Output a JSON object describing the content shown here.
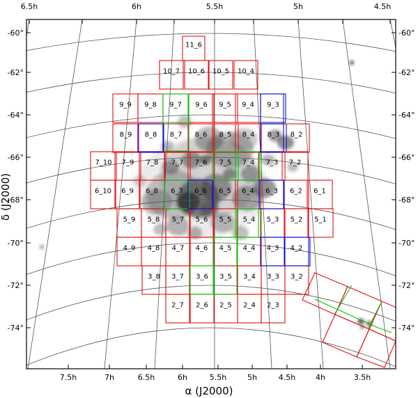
{
  "figure": {
    "x_axis_title": "α (J2000)",
    "y_axis_title": "δ (J2000)",
    "ra_labels_top": [
      "6.5h",
      "6h",
      "5.5h",
      "5h",
      "4.5h"
    ],
    "ra_labels_bottom": [
      "7.5h",
      "7h",
      "6.5h",
      "6h",
      "5.5h",
      "5h",
      "4.5h",
      "4h",
      "3.5h"
    ],
    "dec_labels": [
      "-60°",
      "-62°",
      "-64°",
      "-66°",
      "-68°",
      "-70°",
      "-72°",
      "-74°"
    ],
    "colors": {
      "red": "#e01010",
      "blue": "#1010d0",
      "green": "#10c010",
      "frame": "#000000",
      "grid": "#555555",
      "nebula": "#333333"
    },
    "tiles": [
      {
        "label": "11_6",
        "color": "red"
      },
      {
        "label": "10_7",
        "color": "red"
      },
      {
        "label": "10_6",
        "color": "red"
      },
      {
        "label": "10_5",
        "color": "red"
      },
      {
        "label": "10_4",
        "color": "red"
      },
      {
        "label": "9_9",
        "color": "red"
      },
      {
        "label": "9_8",
        "color": "red"
      },
      {
        "label": "9_7",
        "color": "green"
      },
      {
        "label": "9_6",
        "color": "red"
      },
      {
        "label": "9_5",
        "color": "red"
      },
      {
        "label": "9_4",
        "color": "red"
      },
      {
        "label": "9_3",
        "color": "blue"
      },
      {
        "label": "8_9",
        "color": "red"
      },
      {
        "label": "8_8",
        "color": "blue"
      },
      {
        "label": "8_7",
        "color": "red"
      },
      {
        "label": "8_6",
        "color": "red"
      },
      {
        "label": "8_5",
        "color": "red"
      },
      {
        "label": "8_4",
        "color": "red"
      },
      {
        "label": "8_3",
        "color": "blue"
      },
      {
        "label": "8_2",
        "color": "red"
      },
      {
        "label": "7_10",
        "color": "red"
      },
      {
        "label": "7_9",
        "color": "red"
      },
      {
        "label": "7_8",
        "color": "red"
      },
      {
        "label": "7_7",
        "color": "red"
      },
      {
        "label": "7_6",
        "color": "red"
      },
      {
        "label": "7_5",
        "color": "green"
      },
      {
        "label": "7_4",
        "color": "green"
      },
      {
        "label": "7_3",
        "color": "red"
      },
      {
        "label": "7_2",
        "color": "red"
      },
      {
        "label": "6_10",
        "color": "red"
      },
      {
        "label": "6_9",
        "color": "red"
      },
      {
        "label": "6_8",
        "color": "red"
      },
      {
        "label": "6_7",
        "color": "green"
      },
      {
        "label": "6_6",
        "color": "blue"
      },
      {
        "label": "6_5",
        "color": "red"
      },
      {
        "label": "6_4",
        "color": "red"
      },
      {
        "label": "6_3",
        "color": "blue"
      },
      {
        "label": "6_2",
        "color": "red"
      },
      {
        "label": "6_1",
        "color": "red"
      },
      {
        "label": "5_9",
        "color": "red"
      },
      {
        "label": "5_8",
        "color": "red"
      },
      {
        "label": "5_7",
        "color": "red"
      },
      {
        "label": "5_6",
        "color": "red"
      },
      {
        "label": "5_5",
        "color": "red"
      },
      {
        "label": "5_4",
        "color": "green"
      },
      {
        "label": "5_3",
        "color": "red"
      },
      {
        "label": "5_2",
        "color": "red"
      },
      {
        "label": "5_1",
        "color": "red"
      },
      {
        "label": "4_9",
        "color": "red"
      },
      {
        "label": "4_8",
        "color": "red"
      },
      {
        "label": "4_7",
        "color": "red"
      },
      {
        "label": "4_6",
        "color": "red"
      },
      {
        "label": "4_5",
        "color": "green"
      },
      {
        "label": "4_4",
        "color": "red"
      },
      {
        "label": "4_3",
        "color": "blue"
      },
      {
        "label": "4_2",
        "color": "blue"
      },
      {
        "label": "3_8",
        "color": "red"
      },
      {
        "label": "3_7",
        "color": "red"
      },
      {
        "label": "3_6",
        "color": "green"
      },
      {
        "label": "3_5",
        "color": "red"
      },
      {
        "label": "3_4",
        "color": "red"
      },
      {
        "label": "3_3",
        "color": "red"
      },
      {
        "label": "3_2",
        "color": "red"
      },
      {
        "label": "2_7",
        "color": "red"
      },
      {
        "label": "2_6",
        "color": "red"
      },
      {
        "label": "2_5",
        "color": "red"
      },
      {
        "label": "2_4",
        "color": "red"
      },
      {
        "label": "2_3",
        "color": "red"
      }
    ]
  }
}
